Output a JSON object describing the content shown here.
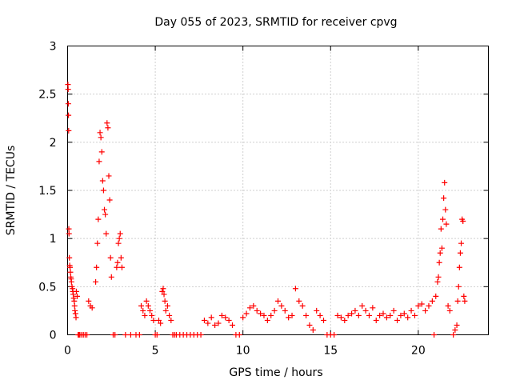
{
  "chart_data": {
    "type": "scatter",
    "title": "Day 055 of 2023, SRMTID for receiver cpvg",
    "xlabel": "GPS time / hours",
    "ylabel": "SRMTID / TECUs",
    "xlim": [
      0,
      24
    ],
    "ylim": [
      0,
      3
    ],
    "xticks": [
      0,
      5,
      10,
      15,
      20
    ],
    "yticks": [
      0,
      0.5,
      1,
      1.5,
      2,
      2.5,
      3
    ],
    "grid": true,
    "marker": "+",
    "marker_color": "#ff0000",
    "series": [
      {
        "name": "SRMTID",
        "x": [
          0.02,
          0.03,
          0.04,
          0.05,
          0.06,
          0.07,
          0.08,
          0.1,
          0.12,
          0.14,
          0.16,
          0.18,
          0.2,
          0.22,
          0.25,
          0.28,
          0.3,
          0.32,
          0.35,
          0.38,
          0.4,
          0.42,
          0.45,
          0.48,
          0.5,
          0.55,
          0.6,
          0.65,
          0.7,
          0.8,
          0.9,
          1.0,
          1.1,
          1.2,
          1.3,
          1.4,
          1.6,
          1.65,
          1.7,
          1.75,
          1.8,
          1.85,
          1.9,
          1.95,
          2.0,
          2.05,
          2.1,
          2.15,
          2.2,
          2.25,
          2.3,
          2.35,
          2.4,
          2.45,
          2.5,
          2.6,
          2.7,
          2.8,
          2.85,
          2.9,
          2.95,
          3.0,
          3.05,
          3.1,
          3.3,
          3.6,
          3.9,
          4.1,
          4.2,
          4.3,
          4.4,
          4.5,
          4.6,
          4.7,
          4.8,
          4.9,
          5.0,
          5.1,
          5.2,
          5.3,
          5.4,
          5.45,
          5.5,
          5.55,
          5.6,
          5.7,
          5.8,
          5.9,
          6.0,
          6.1,
          6.2,
          6.4,
          6.6,
          6.8,
          7.0,
          7.2,
          7.4,
          7.6,
          7.8,
          8.0,
          8.2,
          8.4,
          8.6,
          8.8,
          9.0,
          9.2,
          9.4,
          9.6,
          9.8,
          10.0,
          10.2,
          10.4,
          10.6,
          10.8,
          11.0,
          11.2,
          11.4,
          11.6,
          11.8,
          12.0,
          12.2,
          12.4,
          12.6,
          12.8,
          13.0,
          13.2,
          13.4,
          13.6,
          13.8,
          14.0,
          14.2,
          14.4,
          14.6,
          14.8,
          15.0,
          15.2,
          15.4,
          15.6,
          15.8,
          16.0,
          16.2,
          16.4,
          16.6,
          16.8,
          17.0,
          17.2,
          17.4,
          17.6,
          17.8,
          18.0,
          18.2,
          18.4,
          18.6,
          18.8,
          19.0,
          19.2,
          19.4,
          19.6,
          19.8,
          20.0,
          20.2,
          20.4,
          20.6,
          20.8,
          20.9,
          21.0,
          21.1,
          21.15,
          21.2,
          21.25,
          21.3,
          21.35,
          21.4,
          21.45,
          21.5,
          21.55,
          21.6,
          21.7,
          21.8,
          22.0,
          22.1,
          22.2,
          22.25,
          22.3,
          22.35,
          22.4,
          22.45,
          22.5,
          22.55,
          22.6,
          22.65
        ],
        "y": [
          2.6,
          2.55,
          2.4,
          2.28,
          2.12,
          1.1,
          1.05,
          0.8,
          0.72,
          0.7,
          0.65,
          0.6,
          0.58,
          0.55,
          0.5,
          0.48,
          0.45,
          0.42,
          0.38,
          0.35,
          0.3,
          0.25,
          0.22,
          0.18,
          0.45,
          0.4,
          0.0,
          0.0,
          0.0,
          0.0,
          0.0,
          0.0,
          0.0,
          0.35,
          0.3,
          0.28,
          0.55,
          0.7,
          0.95,
          1.2,
          1.8,
          2.1,
          2.05,
          1.9,
          1.6,
          1.5,
          1.3,
          1.25,
          1.05,
          2.2,
          2.15,
          1.65,
          1.4,
          0.8,
          0.6,
          0.0,
          0.0,
          0.7,
          0.75,
          0.95,
          1.0,
          1.05,
          0.8,
          0.7,
          0.0,
          0.0,
          0.0,
          0.0,
          0.3,
          0.25,
          0.2,
          0.35,
          0.3,
          0.25,
          0.2,
          0.15,
          0.0,
          0.0,
          0.15,
          0.12,
          0.45,
          0.48,
          0.42,
          0.35,
          0.25,
          0.3,
          0.2,
          0.15,
          0.0,
          0.0,
          0.0,
          0.0,
          0.0,
          0.0,
          0.0,
          0.0,
          0.0,
          0.0,
          0.15,
          0.12,
          0.18,
          0.1,
          0.12,
          0.2,
          0.18,
          0.15,
          0.1,
          0.0,
          0.0,
          0.18,
          0.22,
          0.28,
          0.3,
          0.25,
          0.22,
          0.2,
          0.15,
          0.2,
          0.25,
          0.35,
          0.3,
          0.25,
          0.18,
          0.2,
          0.48,
          0.35,
          0.3,
          0.2,
          0.1,
          0.05,
          0.25,
          0.2,
          0.15,
          0.0,
          0.0,
          0.0,
          0.2,
          0.18,
          0.15,
          0.2,
          0.22,
          0.25,
          0.2,
          0.3,
          0.25,
          0.2,
          0.28,
          0.15,
          0.2,
          0.22,
          0.18,
          0.2,
          0.25,
          0.15,
          0.2,
          0.22,
          0.18,
          0.25,
          0.2,
          0.3,
          0.32,
          0.25,
          0.3,
          0.35,
          0.0,
          0.4,
          0.55,
          0.6,
          0.75,
          0.85,
          1.1,
          0.9,
          1.2,
          1.42,
          1.58,
          1.3,
          1.15,
          0.3,
          0.25,
          0.0,
          0.05,
          0.1,
          0.35,
          0.5,
          0.7,
          0.85,
          0.95,
          1.2,
          1.18,
          0.4,
          0.35
        ]
      }
    ]
  }
}
